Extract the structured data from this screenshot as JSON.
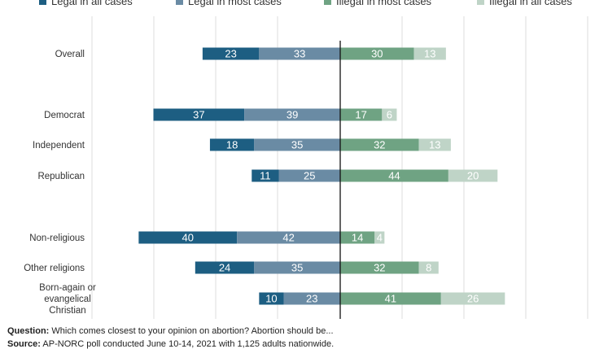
{
  "legend": [
    {
      "label": "Legal in all cases",
      "color": "#1d5e82"
    },
    {
      "label": "Legal in most cases",
      "color": "#6a8ba4"
    },
    {
      "label": "Illegal in most cases",
      "color": "#6fa383"
    },
    {
      "label": "Illegal in all cases",
      "color": "#bfd4c7"
    }
  ],
  "chart_data": {
    "type": "bar",
    "orientation": "horizontal-diverging",
    "categories": [
      "Overall",
      "Democrat",
      "Independent",
      "Republican",
      "Non-religious",
      "Other religions",
      "Born-again or evangelical Christian"
    ],
    "series": [
      {
        "name": "Legal in all cases",
        "color": "#1d5e82",
        "values": [
          23,
          37,
          18,
          11,
          40,
          24,
          10
        ]
      },
      {
        "name": "Legal in most cases",
        "color": "#6a8ba4",
        "values": [
          33,
          39,
          35,
          25,
          42,
          35,
          23
        ]
      },
      {
        "name": "Illegal in most cases",
        "color": "#6fa383",
        "values": [
          30,
          17,
          32,
          44,
          14,
          32,
          41
        ]
      },
      {
        "name": "Illegal in all cases",
        "color": "#bfd4c7",
        "values": [
          13,
          6,
          13,
          20,
          4,
          8,
          26
        ]
      }
    ],
    "grid": true
  },
  "footnote": {
    "question_label": "Question:",
    "question_text": "Which comes closest to your opinion on abortion? Abortion should be...",
    "source_label": "Source:",
    "source_text": "AP-NORC poll conducted June 10-14, 2021 with 1,125 adults nationwide."
  }
}
